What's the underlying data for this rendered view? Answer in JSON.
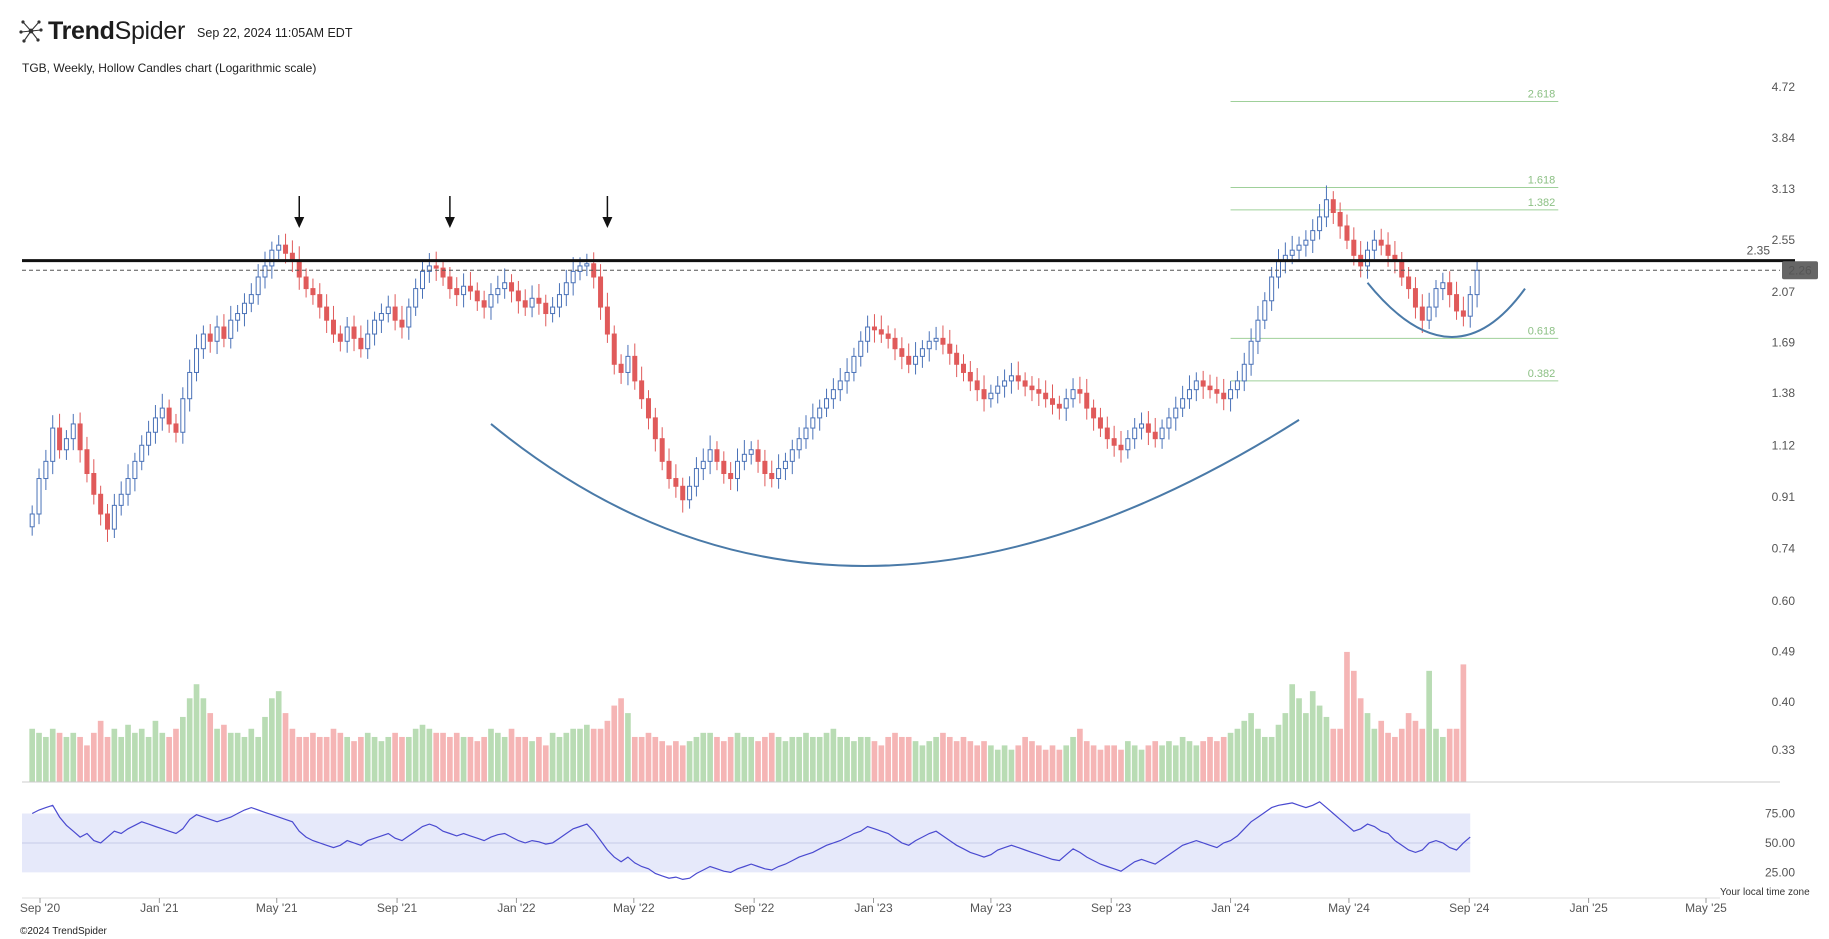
{
  "header": {
    "brand_bold": "Trend",
    "brand_light": "Spider",
    "timestamp": "Sep 22, 2024 11:05AM EDT",
    "subtitle": "TGB, Weekly, Hollow Candles chart (Logarithmic scale)"
  },
  "footer": {
    "copyright": "©2024 TrendSpider",
    "timezone": "Your local time zone"
  },
  "colors": {
    "up": "#4a72b8",
    "down": "#e05a5a",
    "vol_up": "#b9dcb4",
    "vol_down": "#f5b5b5",
    "rsi_line": "#4a4ad0",
    "rsi_band": "#e6e9fa",
    "arc": "#4a7aa8",
    "fib": "#9fd09a"
  },
  "chart_data": [
    {
      "type": "candlestick",
      "title": "TGB, Weekly, Hollow Candles chart (Logarithmic scale)",
      "y_scale": "log",
      "ylim": [
        0.29,
        4.85
      ],
      "y_ticks": [
        "4.72",
        "3.84",
        "3.13",
        "2.55",
        "2.07",
        "1.69",
        "1.38",
        "1.12",
        "0.91",
        "0.74",
        "0.60",
        "0.49",
        "0.40",
        "0.33"
      ],
      "x_ticks": [
        "Sep '20",
        "Jan '21",
        "May '21",
        "Sep '21",
        "Jan '22",
        "May '22",
        "Sep '22",
        "Jan '23",
        "May '23",
        "Sep '23",
        "Jan '24",
        "May '24",
        "Sep '24",
        "Jan '25",
        "May '25"
      ],
      "x_tick_dates": [
        "2020-09-01",
        "2021-01-01",
        "2021-05-01",
        "2021-09-01",
        "2022-01-01",
        "2022-05-01",
        "2022-09-01",
        "2023-01-01",
        "2023-05-01",
        "2023-09-01",
        "2024-01-01",
        "2024-05-01",
        "2024-09-01",
        "2025-01-01",
        "2025-05-01"
      ],
      "first_week": "2020-08-24",
      "last_price": "2.26",
      "resistance": {
        "value": 2.35,
        "label": "2.35"
      },
      "fib_levels": [
        {
          "label": "2.618",
          "value": 4.45
        },
        {
          "label": "1.618",
          "value": 3.15
        },
        {
          "label": "1.382",
          "value": 2.88
        },
        {
          "label": "0.618",
          "value": 1.72
        },
        {
          "label": "0.382",
          "value": 1.45
        }
      ],
      "fib_range_dates": [
        "2024-01-01",
        "2024-12-01"
      ],
      "arrows_dates": [
        "2021-05-24",
        "2021-10-25",
        "2022-04-04"
      ],
      "cup_dates": [
        "2021-12-06",
        "2022-12-26",
        "2024-03-11"
      ],
      "cup_values": [
        1.22,
        0.69,
        1.24
      ],
      "handle_dates": [
        "2024-05-20",
        "2024-08-12",
        "2024-10-28"
      ],
      "handle_values": [
        2.15,
        1.73,
        2.1
      ],
      "closes": [
        0.85,
        0.98,
        1.05,
        1.2,
        1.1,
        1.15,
        1.22,
        1.1,
        1.0,
        0.92,
        0.85,
        0.8,
        0.88,
        0.92,
        0.98,
        1.05,
        1.12,
        1.18,
        1.25,
        1.3,
        1.22,
        1.18,
        1.35,
        1.5,
        1.65,
        1.75,
        1.7,
        1.8,
        1.72,
        1.85,
        1.9,
        1.98,
        2.05,
        2.2,
        2.3,
        2.45,
        2.5,
        2.42,
        2.35,
        2.2,
        2.1,
        2.05,
        1.95,
        1.85,
        1.75,
        1.7,
        1.8,
        1.72,
        1.65,
        1.75,
        1.85,
        1.9,
        1.95,
        1.85,
        1.8,
        1.95,
        2.1,
        2.25,
        2.3,
        2.28,
        2.2,
        2.1,
        2.05,
        2.12,
        2.08,
        2.0,
        1.95,
        2.05,
        2.1,
        2.15,
        2.08,
        2.0,
        1.95,
        2.02,
        1.98,
        1.9,
        1.95,
        2.05,
        2.15,
        2.25,
        2.3,
        2.32,
        2.2,
        1.95,
        1.75,
        1.55,
        1.5,
        1.6,
        1.45,
        1.35,
        1.25,
        1.15,
        1.05,
        0.98,
        0.95,
        0.9,
        0.95,
        1.02,
        1.05,
        1.1,
        1.05,
        1.0,
        0.98,
        1.05,
        1.08,
        1.1,
        1.05,
        1.0,
        0.98,
        1.02,
        1.05,
        1.1,
        1.15,
        1.2,
        1.25,
        1.3,
        1.35,
        1.4,
        1.45,
        1.5,
        1.6,
        1.7,
        1.8,
        1.78,
        1.75,
        1.72,
        1.65,
        1.6,
        1.55,
        1.6,
        1.65,
        1.7,
        1.72,
        1.68,
        1.62,
        1.55,
        1.5,
        1.45,
        1.4,
        1.35,
        1.38,
        1.42,
        1.45,
        1.48,
        1.45,
        1.42,
        1.4,
        1.38,
        1.35,
        1.32,
        1.3,
        1.35,
        1.4,
        1.38,
        1.3,
        1.25,
        1.2,
        1.15,
        1.12,
        1.1,
        1.15,
        1.2,
        1.22,
        1.18,
        1.15,
        1.2,
        1.25,
        1.3,
        1.35,
        1.4,
        1.45,
        1.42,
        1.4,
        1.38,
        1.35,
        1.4,
        1.45,
        1.55,
        1.7,
        1.85,
        2.0,
        2.2,
        2.35,
        2.4,
        2.45,
        2.5,
        2.55,
        2.65,
        2.8,
        3.0,
        2.85,
        2.7,
        2.55,
        2.4,
        2.3,
        2.45,
        2.55,
        2.5,
        2.4,
        2.35,
        2.2,
        2.1,
        1.95,
        1.85,
        1.95,
        2.1,
        2.15,
        2.05,
        1.92,
        1.88,
        2.05,
        2.26
      ],
      "volumes": [
        0.34,
        0.335,
        0.33,
        0.34,
        0.335,
        0.33,
        0.335,
        0.33,
        0.32,
        0.335,
        0.35,
        0.33,
        0.34,
        0.33,
        0.345,
        0.335,
        0.34,
        0.33,
        0.35,
        0.335,
        0.33,
        0.34,
        0.355,
        0.38,
        0.4,
        0.38,
        0.36,
        0.34,
        0.345,
        0.335,
        0.335,
        0.33,
        0.34,
        0.33,
        0.355,
        0.38,
        0.39,
        0.36,
        0.34,
        0.33,
        0.33,
        0.335,
        0.33,
        0.33,
        0.34,
        0.335,
        0.33,
        0.325,
        0.33,
        0.335,
        0.33,
        0.325,
        0.33,
        0.335,
        0.33,
        0.33,
        0.34,
        0.345,
        0.34,
        0.335,
        0.335,
        0.33,
        0.335,
        0.33,
        0.33,
        0.325,
        0.33,
        0.34,
        0.335,
        0.33,
        0.34,
        0.33,
        0.33,
        0.325,
        0.33,
        0.32,
        0.335,
        0.33,
        0.335,
        0.34,
        0.34,
        0.345,
        0.34,
        0.34,
        0.35,
        0.37,
        0.38,
        0.36,
        0.33,
        0.33,
        0.335,
        0.33,
        0.325,
        0.32,
        0.325,
        0.32,
        0.325,
        0.33,
        0.335,
        0.335,
        0.33,
        0.325,
        0.33,
        0.335,
        0.33,
        0.33,
        0.325,
        0.33,
        0.335,
        0.33,
        0.325,
        0.33,
        0.33,
        0.335,
        0.33,
        0.33,
        0.335,
        0.34,
        0.33,
        0.33,
        0.325,
        0.33,
        0.33,
        0.325,
        0.32,
        0.33,
        0.335,
        0.33,
        0.33,
        0.325,
        0.32,
        0.325,
        0.33,
        0.335,
        0.33,
        0.325,
        0.33,
        0.325,
        0.32,
        0.325,
        0.32,
        0.315,
        0.32,
        0.315,
        0.32,
        0.33,
        0.325,
        0.32,
        0.315,
        0.32,
        0.315,
        0.32,
        0.33,
        0.34,
        0.325,
        0.32,
        0.315,
        0.32,
        0.32,
        0.315,
        0.325,
        0.32,
        0.315,
        0.32,
        0.325,
        0.32,
        0.325,
        0.32,
        0.33,
        0.325,
        0.32,
        0.325,
        0.33,
        0.325,
        0.33,
        0.335,
        0.34,
        0.35,
        0.36,
        0.34,
        0.33,
        0.33,
        0.345,
        0.36,
        0.4,
        0.38,
        0.36,
        0.39,
        0.37,
        0.355,
        0.34,
        0.34,
        0.45,
        0.42,
        0.38,
        0.36,
        0.34,
        0.35,
        0.335,
        0.33,
        0.34,
        0.36,
        0.35,
        0.34,
        0.42,
        0.34,
        0.33,
        0.34,
        0.34,
        0.43
      ]
    },
    {
      "type": "line",
      "title": "RSI",
      "y_ticks": [
        "75.00",
        "50.00",
        "25.00"
      ],
      "ylim": [
        10,
        95
      ],
      "band": [
        25,
        75
      ],
      "mid": 50,
      "rsi_values": [
        75,
        78,
        80,
        82,
        72,
        65,
        60,
        55,
        58,
        52,
        50,
        55,
        60,
        58,
        62,
        65,
        68,
        66,
        64,
        62,
        60,
        58,
        62,
        70,
        74,
        72,
        70,
        68,
        70,
        72,
        75,
        78,
        80,
        78,
        76,
        74,
        72,
        70,
        68,
        60,
        55,
        52,
        50,
        48,
        46,
        48,
        52,
        50,
        48,
        52,
        54,
        56,
        58,
        54,
        52,
        56,
        60,
        64,
        66,
        64,
        60,
        58,
        56,
        58,
        56,
        54,
        52,
        55,
        57,
        58,
        55,
        52,
        50,
        52,
        51,
        49,
        50,
        54,
        58,
        62,
        64,
        66,
        60,
        52,
        44,
        38,
        34,
        38,
        33,
        30,
        28,
        24,
        22,
        20,
        21,
        19,
        20,
        24,
        27,
        30,
        28,
        26,
        25,
        28,
        30,
        32,
        30,
        28,
        27,
        30,
        32,
        35,
        38,
        40,
        42,
        45,
        48,
        50,
        52,
        55,
        58,
        60,
        64,
        62,
        60,
        58,
        54,
        50,
        48,
        52,
        55,
        58,
        60,
        56,
        52,
        48,
        45,
        42,
        40,
        38,
        40,
        44,
        46,
        48,
        46,
        44,
        42,
        40,
        38,
        36,
        35,
        40,
        45,
        42,
        38,
        35,
        32,
        30,
        28,
        26,
        30,
        34,
        36,
        34,
        32,
        36,
        40,
        44,
        48,
        50,
        52,
        50,
        48,
        46,
        50,
        52,
        56,
        62,
        68,
        72,
        76,
        80,
        82,
        83,
        84,
        82,
        80,
        82,
        85,
        80,
        75,
        70,
        65,
        60,
        62,
        66,
        64,
        60,
        58,
        52,
        48,
        44,
        42,
        44,
        50,
        52,
        50,
        46,
        44,
        50,
        55
      ]
    }
  ]
}
